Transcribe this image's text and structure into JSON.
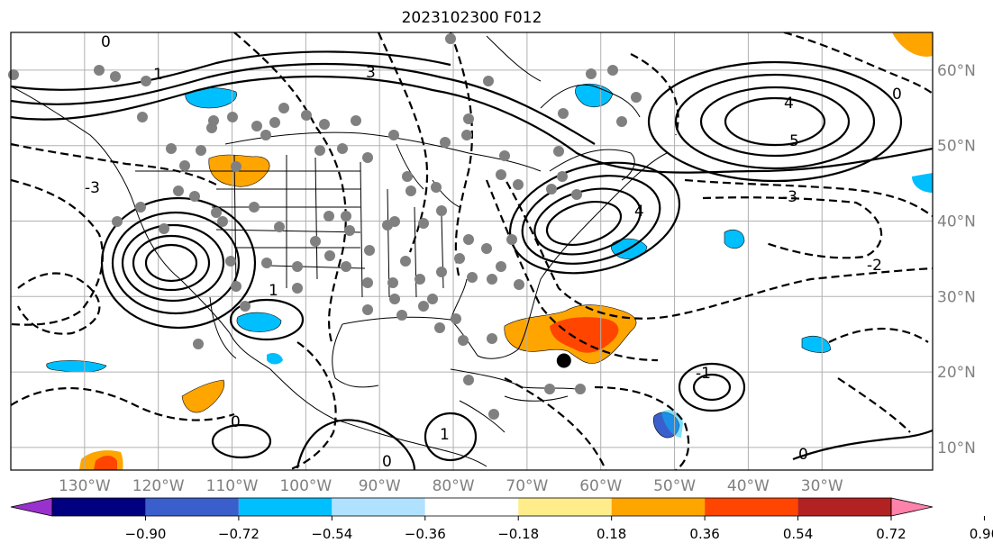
{
  "title": "2023102300 F012",
  "map": {
    "lon_range": [
      -140,
      -15
    ],
    "lat_range": [
      7,
      65
    ],
    "lon_ticks": [
      "130°W",
      "120°W",
      "110°W",
      "100°W",
      "90°W",
      "80°W",
      "70°W",
      "60°W",
      "50°W",
      "40°W",
      "30°W"
    ],
    "lat_ticks": [
      "10°N",
      "20°N",
      "30°N",
      "40°N",
      "50°N",
      "60°N"
    ],
    "contour_labels": [
      "0",
      "1",
      "2",
      "3",
      "4",
      "5",
      "-1",
      "-2",
      "-3"
    ],
    "grid": true,
    "marker": {
      "lon": -65,
      "lat": 21.5,
      "color": "#000000"
    },
    "station_color": "#808080",
    "line_color": "#000000"
  },
  "colorbar": {
    "colors": [
      "#9932cc",
      "#000080",
      "#3a5fcd",
      "#00bfff",
      "#b0e2ff",
      "#ffffff",
      "#ffec8b",
      "#ffa500",
      "#ff4500",
      "#b22222",
      "#ff82ab"
    ],
    "labels": [
      "−0.90",
      "−0.72",
      "−0.54",
      "−0.36",
      "−0.18",
      "0.18",
      "0.36",
      "0.54",
      "0.72",
      "0.90"
    ]
  }
}
